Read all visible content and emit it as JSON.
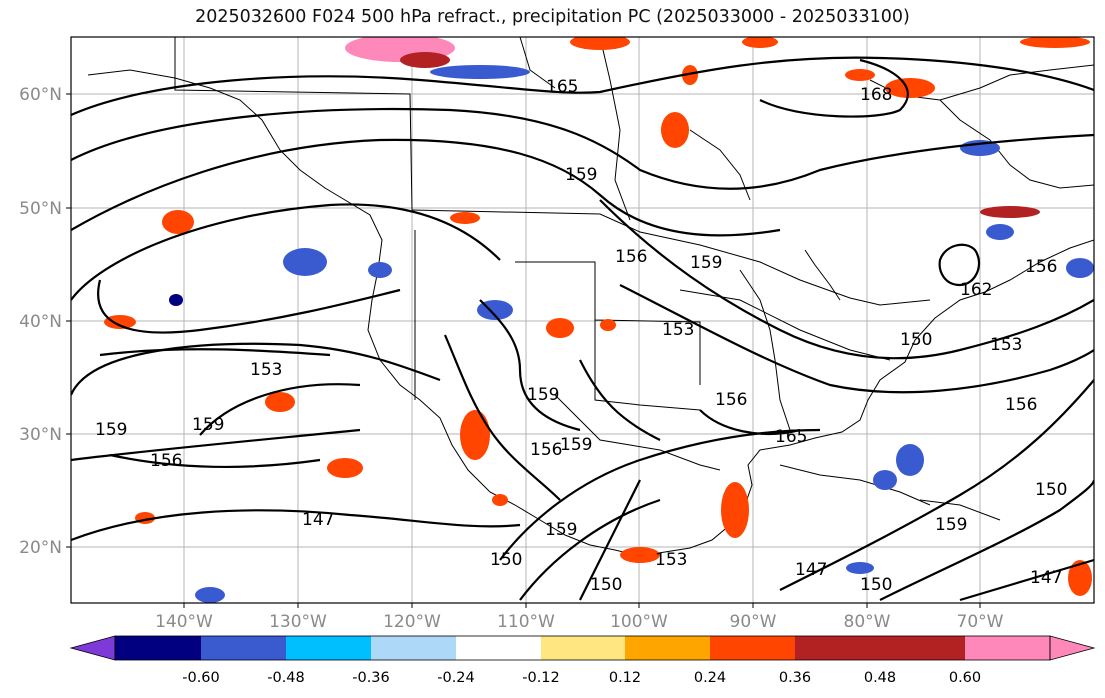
{
  "title": "2025032600 F024 500 hPa refract., precipitation PC (2025033000 - 2025033100)",
  "lat_labels": [
    "60°N",
    "50°N",
    "40°N",
    "30°N",
    "20°N"
  ],
  "lon_labels": [
    "140°W",
    "130°W",
    "120°W",
    "110°W",
    "100°W",
    "90°W",
    "80°W",
    "70°W"
  ],
  "contour_labels": [
    "165",
    "168",
    "159",
    "156",
    "153",
    "156",
    "159",
    "159",
    "153",
    "159",
    "156",
    "150",
    "147",
    "150",
    "150",
    "159",
    "153",
    "153",
    "156",
    "150",
    "147",
    "147",
    "159",
    "159",
    "156",
    "150",
    "156",
    "162",
    "165",
    "159"
  ],
  "colorbar": {
    "colors": [
      "#7e3ad6",
      "#000080",
      "#3a5bd0",
      "#00bfff",
      "#add8f8",
      "#ffffff",
      "#ffe680",
      "#ffa500",
      "#ff4500",
      "#b22222",
      "#ff88bb"
    ],
    "tick_labels": [
      "-0.60",
      "-0.48",
      "-0.36",
      "-0.24",
      "-0.12",
      "0.12",
      "0.24",
      "0.36",
      "0.48",
      "0.60"
    ]
  }
}
